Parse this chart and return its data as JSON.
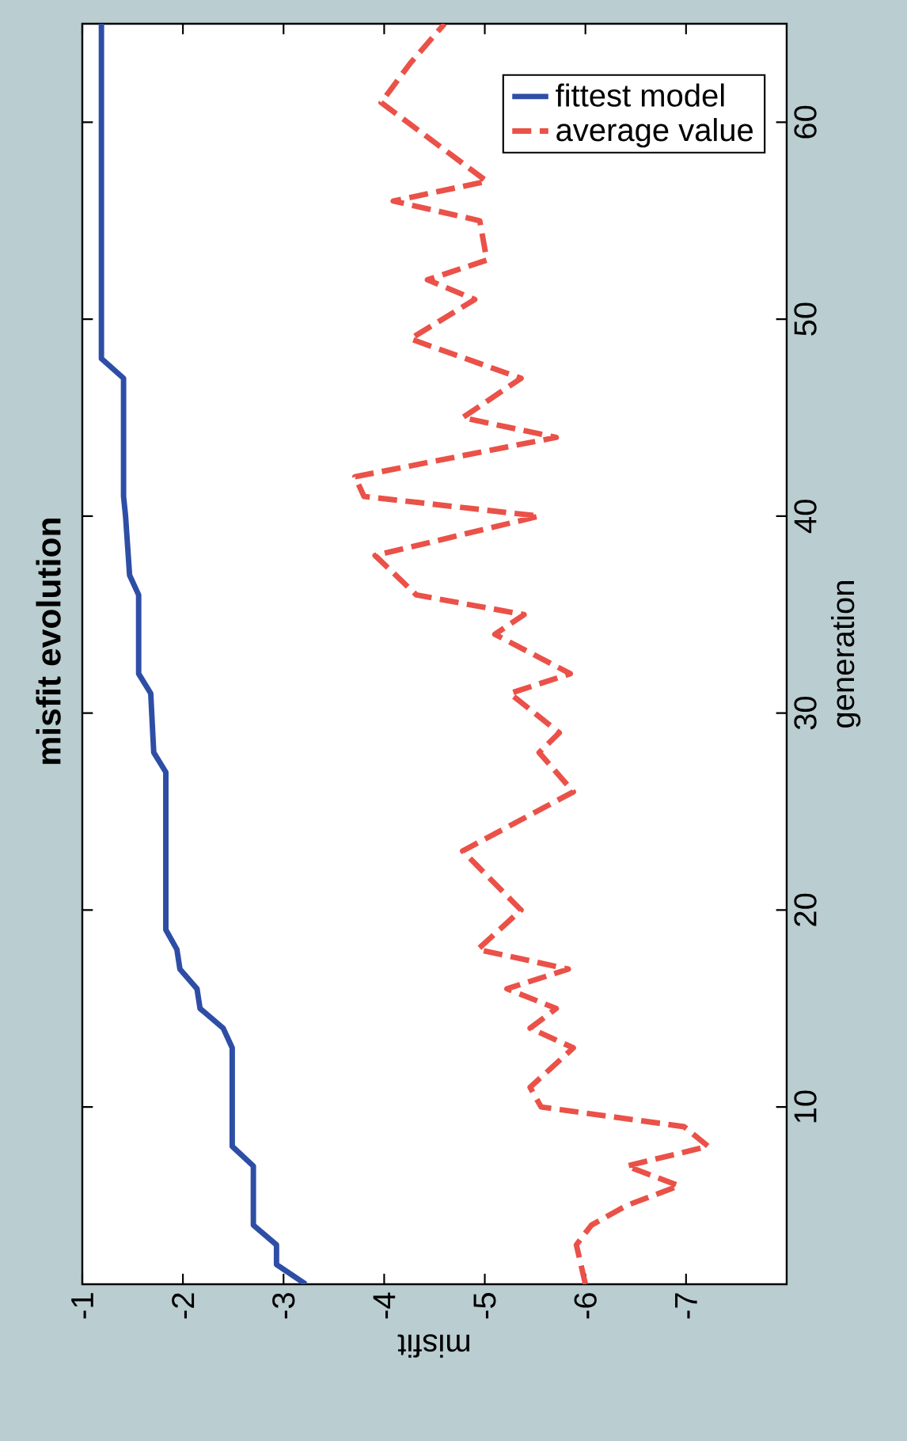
{
  "chart_data": {
    "type": "line",
    "orientation": "horizontal",
    "title": "misfit evolution",
    "xlabel": "misfit",
    "ylabel": "generation",
    "xlim": [
      -1,
      -8
    ],
    "ylim": [
      1,
      65
    ],
    "xticks": [
      -1,
      -2,
      -3,
      -4,
      -5,
      -6,
      -7
    ],
    "yticks": [
      10,
      20,
      30,
      40,
      50,
      60
    ],
    "legend": "top right",
    "series": [
      {
        "name": "fittest model",
        "color": "#2e4ea6",
        "line_style": "solid",
        "x": [
          1,
          2,
          3,
          4,
          7,
          8,
          13,
          14,
          15,
          16,
          17,
          18,
          19,
          27,
          28,
          31,
          32,
          36,
          37,
          40,
          41,
          47,
          48,
          65
        ],
        "values": [
          -3.22,
          -2.93,
          -2.93,
          -2.7,
          -2.7,
          -2.49,
          -2.49,
          -2.4,
          -2.17,
          -2.14,
          -1.97,
          -1.94,
          -1.83,
          -1.83,
          -1.71,
          -1.68,
          -1.56,
          -1.56,
          -1.47,
          -1.43,
          -1.41,
          -1.41,
          -1.19,
          -1.19
        ]
      },
      {
        "name": "average value",
        "color": "#ea5148",
        "line_style": "dashed",
        "x": [
          1,
          3,
          4,
          5,
          6,
          7,
          8,
          9,
          10,
          11,
          13,
          14,
          15,
          16,
          17,
          18,
          20,
          23,
          26,
          28,
          29,
          31,
          32,
          34,
          35,
          36,
          38,
          40,
          41,
          42,
          44,
          45,
          47,
          49,
          51,
          52,
          53,
          55,
          56,
          57,
          61,
          63,
          65
        ],
        "values": [
          -6.0,
          -5.91,
          -6.06,
          -6.41,
          -6.93,
          -6.41,
          -7.22,
          -6.98,
          -5.56,
          -5.45,
          -5.88,
          -5.45,
          -5.71,
          -5.22,
          -5.83,
          -4.93,
          -5.36,
          -4.78,
          -5.88,
          -5.54,
          -5.74,
          -5.25,
          -5.85,
          -5.1,
          -5.39,
          -4.32,
          -3.91,
          -5.54,
          -3.8,
          -3.71,
          -5.71,
          -4.78,
          -5.36,
          -4.26,
          -4.9,
          -4.43,
          -5.02,
          -4.95,
          -4.09,
          -5.02,
          -3.97,
          -4.26,
          -4.6
        ]
      }
    ]
  }
}
